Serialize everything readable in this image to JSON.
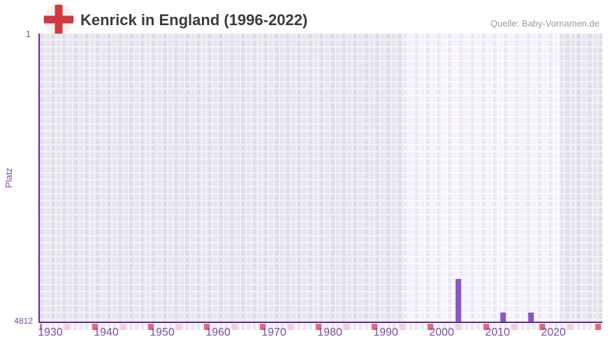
{
  "header": {
    "title": "Kenrick in England (1996-2022)",
    "source": "Quelle: Baby-Vornamen.de",
    "flag_icon": "england-flag"
  },
  "chart_data": {
    "type": "bar",
    "title": "Kenrick in England (1996-2022)",
    "ylabel": "Platz",
    "y_axis": {
      "top_tick": "1",
      "bottom_tick": "4812",
      "min": 1,
      "max": 4812,
      "inverted": true
    },
    "x_axis": {
      "tick_labels": [
        "1930",
        "1940",
        "1950",
        "1960",
        "1970",
        "1980",
        "1990",
        "2000",
        "2010",
        "2020"
      ],
      "range_start": 1928,
      "range_end": 2029
    },
    "bars": [
      {
        "year": 2003,
        "rank": 4100
      },
      {
        "year": 2011,
        "rank": 4660
      },
      {
        "year": 2016,
        "rank": 4660
      }
    ],
    "highlight_band": {
      "from_year": 1994,
      "to_year": 2021
    },
    "baseline_markers": {
      "red_years": [
        1928,
        1938,
        1948,
        1958,
        1968,
        1978,
        1988,
        1998,
        2008,
        2018,
        2028
      ],
      "pink_years": [
        1933,
        1943,
        1953,
        1963,
        1973,
        1983,
        1993,
        2003,
        2013,
        2023
      ]
    },
    "grid": true,
    "legend": false,
    "colors": {
      "bar": "#8c58c8",
      "axis": "#5b2f93",
      "tick_text": "#7a4daa",
      "marker_red": "#e26b75",
      "marker_pink": "#f5cfd8",
      "title_text": "#3c3c3c",
      "source_text": "#9b9b9b",
      "flag_cross": "#cf3a3f",
      "cell_dark_a": "#e1dcea",
      "cell_dark_b": "#e8e5ef",
      "cell_light_a": "#ede7f8",
      "cell_light_b": "#f5f2fb"
    }
  }
}
